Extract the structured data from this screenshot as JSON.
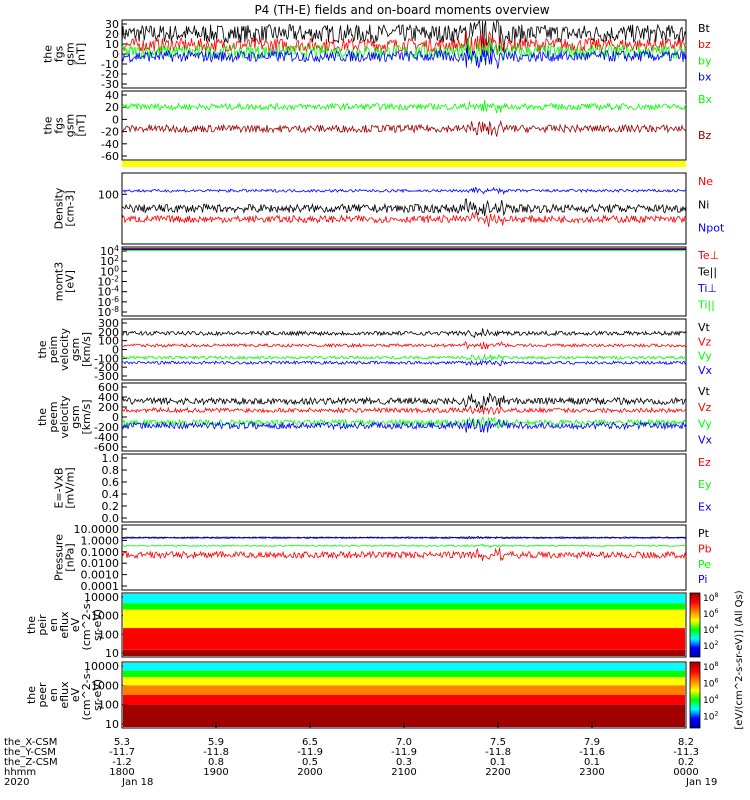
{
  "title": "P4 (TH-E) fields and on-board moments overview",
  "colors": {
    "black": "#000000",
    "red": "#ff0000",
    "green": "#00ff00",
    "blue": "#0000ff",
    "darkred": "#a00000",
    "yellow": "#ffff00"
  },
  "x_axis": {
    "row_labels": [
      "the_X-CSM",
      "the_Y-CSM",
      "the_Z-CSM",
      "hhmm",
      "2020"
    ],
    "ticks": [
      {
        "vals": [
          "5.3",
          "-11.7",
          "-1.2",
          "1800",
          "Jan 18"
        ]
      },
      {
        "vals": [
          "5.9",
          "-11.8",
          "0.8",
          "1900",
          ""
        ]
      },
      {
        "vals": [
          "6.5",
          "-11.9",
          "0.5",
          "2000",
          ""
        ]
      },
      {
        "vals": [
          "7.0",
          "-11.9",
          "0.3",
          "2100",
          ""
        ]
      },
      {
        "vals": [
          "7.5",
          "-11.8",
          "0.1",
          "2200",
          ""
        ]
      },
      {
        "vals": [
          "7.9",
          "-11.6",
          "0.1",
          "2300",
          ""
        ]
      },
      {
        "vals": [
          "8.2",
          "-11.3",
          "0.2",
          "0000",
          "Jan 19"
        ]
      }
    ]
  },
  "colorbar": {
    "label": "[eV/(cm^2-s-sr-eV)] (All Qs)",
    "ticks_top": [
      "10^8",
      "10^6",
      "10^4",
      "10^2"
    ],
    "ticks_bottom": [
      "10^8",
      "10^6",
      "10^4",
      "10^2"
    ]
  },
  "chart_data": [
    {
      "type": "line",
      "id": "fgs",
      "ylabel": [
        "the",
        "fgs",
        "gsm",
        "[nT]"
      ],
      "ylim": [
        -30,
        30
      ],
      "ticks": [
        "30",
        "20",
        "10",
        "0",
        "-10",
        "-20",
        "-30"
      ],
      "series": [
        {
          "name": "Bt",
          "color": "#000000",
          "level": 18,
          "noise": 8
        },
        {
          "name": "bz",
          "color": "#ff0000",
          "level": 8,
          "noise": 6
        },
        {
          "name": "by",
          "color": "#00ff00",
          "level": 2,
          "noise": 6
        },
        {
          "name": "bx",
          "color": "#0000ff",
          "level": -2,
          "noise": 5
        }
      ]
    },
    {
      "type": "line",
      "id": "fgs_gse",
      "ylabel": [
        "the",
        "fgs",
        "gsm",
        "[nT]"
      ],
      "ylim": [
        -70,
        40
      ],
      "ticks": [
        "40",
        "20",
        "0",
        "-20",
        "-40",
        "-60"
      ],
      "series": [
        {
          "name": "Bx",
          "color": "#00ff00",
          "level": 15,
          "noise": 5
        },
        {
          "name": "Bz",
          "color": "#a00000",
          "level": -20,
          "noise": 6
        }
      ]
    },
    {
      "type": "line",
      "id": "density",
      "ylabel": [
        "Density",
        "[cm-3]"
      ],
      "ylim": [
        0,
        1
      ],
      "ticks": [
        "100"
      ],
      "series": [
        {
          "name": "Ne",
          "color": "#ff0000",
          "level": 0.35,
          "noise": 0.05
        },
        {
          "name": "Ni",
          "color": "#000000",
          "level": 0.5,
          "noise": 0.06
        },
        {
          "name": "Npot",
          "color": "#0000ff",
          "level": 0.75,
          "noise": 0.02
        }
      ]
    },
    {
      "type": "line",
      "id": "temp",
      "ylabel": [
        "momt3",
        "[eV]"
      ],
      "ylim": [
        0,
        1
      ],
      "ticks": [
        "10^4",
        "10^2",
        "10^0",
        "10^-2",
        "10^-4",
        "10^-6",
        "10^-8"
      ],
      "series": [
        {
          "name": "Te⊥",
          "color": "#ff0000",
          "level": 0.97,
          "noise": 0.0
        },
        {
          "name": "Te||",
          "color": "#000000",
          "level": 0.96,
          "noise": 0.0
        },
        {
          "name": "Ti⊥",
          "color": "#0000ff",
          "level": 0.98,
          "noise": 0.0
        },
        {
          "name": "Ti||",
          "color": "#00ff00",
          "level": 0.95,
          "noise": 0.0
        }
      ]
    },
    {
      "type": "line",
      "id": "peim",
      "ylabel": [
        "the",
        "peim",
        "velocity",
        "gsm",
        "[km/s]"
      ],
      "ylim": [
        -300,
        300
      ],
      "ticks": [
        "300",
        "200",
        "100",
        "0",
        "-100",
        "-200",
        "-300"
      ],
      "series": [
        {
          "name": "Vt",
          "color": "#000000",
          "level": 160,
          "noise": 20
        },
        {
          "name": "Vz",
          "color": "#ff0000",
          "level": 40,
          "noise": 15
        },
        {
          "name": "Vy",
          "color": "#00ff00",
          "level": -80,
          "noise": 15
        },
        {
          "name": "Vx",
          "color": "#0000ff",
          "level": -130,
          "noise": 15
        }
      ]
    },
    {
      "type": "line",
      "id": "peem",
      "ylabel": [
        "the",
        "peem",
        "velocity",
        "gsm",
        "[km/s]"
      ],
      "ylim": [
        -600,
        600
      ],
      "ticks": [
        "600",
        "400",
        "200",
        "0",
        "-200",
        "-400",
        "-600"
      ],
      "series": [
        {
          "name": "Vt",
          "color": "#000000",
          "level": 280,
          "noise": 60
        },
        {
          "name": "Vz",
          "color": "#ff0000",
          "level": 120,
          "noise": 40
        },
        {
          "name": "Vy",
          "color": "#00ff00",
          "level": -100,
          "noise": 50
        },
        {
          "name": "Vx",
          "color": "#0000ff",
          "level": -150,
          "noise": 60
        }
      ]
    },
    {
      "type": "line",
      "id": "efield",
      "ylabel": [
        "E=-VxB",
        "[mV/m]"
      ],
      "ylim": [
        0,
        1
      ],
      "ticks": [
        "1.0",
        "0.8",
        "0.6",
        "0.4",
        "0.2",
        "0.0"
      ],
      "series": [
        {
          "name": "Ez",
          "color": "#ff0000",
          "level": null,
          "noise": 0
        },
        {
          "name": "Ey",
          "color": "#00ff00",
          "level": null,
          "noise": 0
        },
        {
          "name": "Ex",
          "color": "#0000ff",
          "level": null,
          "noise": 0
        }
      ]
    },
    {
      "type": "line",
      "id": "pressure",
      "ylabel": [
        "Pressure",
        "[nPa]"
      ],
      "ylim": [
        -4,
        1
      ],
      "ticks": [
        "10.0000",
        "1.0000",
        "0.1000",
        "0.0100",
        "0.0010",
        "0.0001"
      ],
      "series": [
        {
          "name": "Pt",
          "color": "#000000",
          "level": 0.05,
          "noise": 0.03
        },
        {
          "name": "Pb",
          "color": "#ff0000",
          "level": -1.3,
          "noise": 0.25
        },
        {
          "name": "Pe",
          "color": "#00ff00",
          "level": -0.6,
          "noise": 0.05
        },
        {
          "name": "Pi",
          "color": "#0000ff",
          "level": 0.0,
          "noise": 0.03
        }
      ]
    },
    {
      "type": "heatmap",
      "id": "peir",
      "ylabel": [
        "the",
        "peir",
        "en",
        "eflux",
        "eV",
        "(cm^2-s-",
        "sr-eV)"
      ],
      "ticks": [
        "10000",
        "1000",
        "100",
        "10"
      ]
    },
    {
      "type": "heatmap",
      "id": "peer",
      "ylabel": [
        "the",
        "peer",
        "en",
        "eflux",
        "eV",
        "(cm^2-s-",
        "sr-eV)"
      ],
      "ticks": [
        "10000",
        "1000",
        "100",
        "10"
      ]
    }
  ]
}
